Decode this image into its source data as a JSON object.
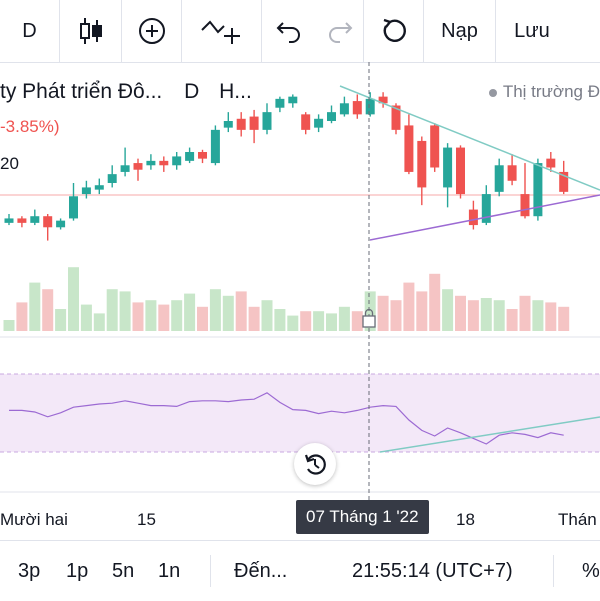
{
  "toolbar": {
    "interval_label": "D",
    "candle_icon": "candles-icon",
    "add_icon": "plus-circle-icon",
    "indicator_icon": "indicator-add-icon",
    "undo_icon": "undo-icon",
    "redo_icon": "redo-icon",
    "refresh_icon": "reload-icon",
    "load_label": "Nạp",
    "save_label": "Lưu"
  },
  "legend": {
    "title": "ty Phát triển Đô...",
    "interval": "D",
    "exchange": "H...",
    "change": "-3.85%)",
    "level": "20",
    "market_status": "Thị trường Đ"
  },
  "x_axis": {
    "labels": [
      "Mười hai",
      "15",
      "18",
      "Thán"
    ],
    "crosshair_label": "07 Tháng 1 '22"
  },
  "bottom": {
    "ranges": [
      "3p",
      "1p",
      "5n",
      "1n"
    ],
    "goto": "Đến...",
    "time": "21:55:14 (UTC+7)",
    "percent": "%"
  },
  "colors": {
    "up": "#26a69a",
    "down": "#ef5350",
    "up_volume": "#c8e6c9",
    "down_volume": "#f5c4c4",
    "rsi_line": "#9c6ad3",
    "rsi_band": "#f3e8f8",
    "trend_upper": "#80cbc4",
    "trend_lower": "#9c6ad3"
  },
  "chart_data": {
    "type": "candlestick",
    "candles": [
      {
        "d": "up",
        "o": 3.0,
        "c": 3.2,
        "h": 3.4,
        "l": 2.9
      },
      {
        "d": "down",
        "o": 3.2,
        "c": 3.0,
        "h": 3.3,
        "l": 2.8
      },
      {
        "d": "up",
        "o": 3.0,
        "c": 3.3,
        "h": 3.6,
        "l": 2.9
      },
      {
        "d": "down",
        "o": 3.3,
        "c": 2.8,
        "h": 3.4,
        "l": 2.2
      },
      {
        "d": "up",
        "o": 2.8,
        "c": 3.1,
        "h": 3.2,
        "l": 2.7
      },
      {
        "d": "up",
        "o": 3.2,
        "c": 4.2,
        "h": 4.8,
        "l": 3.1
      },
      {
        "d": "up",
        "o": 4.3,
        "c": 4.6,
        "h": 4.9,
        "l": 4.1
      },
      {
        "d": "up",
        "o": 4.5,
        "c": 4.7,
        "h": 5.0,
        "l": 4.3
      },
      {
        "d": "up",
        "o": 4.8,
        "c": 5.2,
        "h": 5.6,
        "l": 4.6
      },
      {
        "d": "up",
        "o": 5.3,
        "c": 5.6,
        "h": 6.4,
        "l": 5.1
      },
      {
        "d": "down",
        "o": 5.7,
        "c": 5.4,
        "h": 5.9,
        "l": 4.9
      },
      {
        "d": "up",
        "o": 5.6,
        "c": 5.8,
        "h": 6.1,
        "l": 5.4
      },
      {
        "d": "down",
        "o": 5.8,
        "c": 5.6,
        "h": 6.0,
        "l": 5.3
      },
      {
        "d": "up",
        "o": 5.6,
        "c": 6.0,
        "h": 6.2,
        "l": 5.4
      },
      {
        "d": "up",
        "o": 5.8,
        "c": 6.2,
        "h": 6.4,
        "l": 5.7
      },
      {
        "d": "down",
        "o": 6.2,
        "c": 5.9,
        "h": 6.3,
        "l": 5.7
      },
      {
        "d": "up",
        "o": 5.7,
        "c": 7.2,
        "h": 7.4,
        "l": 5.6
      },
      {
        "d": "up",
        "o": 7.3,
        "c": 7.6,
        "h": 8.0,
        "l": 7.1
      },
      {
        "d": "down",
        "o": 7.7,
        "c": 7.2,
        "h": 8.0,
        "l": 6.9
      },
      {
        "d": "down",
        "o": 7.8,
        "c": 7.2,
        "h": 8.1,
        "l": 6.6
      },
      {
        "d": "up",
        "o": 7.2,
        "c": 8.0,
        "h": 8.4,
        "l": 7.0
      },
      {
        "d": "up",
        "o": 8.2,
        "c": 8.6,
        "h": 8.7,
        "l": 8.0
      },
      {
        "d": "up",
        "o": 8.4,
        "c": 8.7,
        "h": 8.8,
        "l": 8.2
      },
      {
        "d": "down",
        "o": 7.9,
        "c": 7.2,
        "h": 8.0,
        "l": 7.0
      },
      {
        "d": "up",
        "o": 7.3,
        "c": 7.7,
        "h": 7.9,
        "l": 7.1
      },
      {
        "d": "up",
        "o": 7.6,
        "c": 8.0,
        "h": 8.3,
        "l": 7.5
      },
      {
        "d": "up",
        "o": 7.9,
        "c": 8.4,
        "h": 8.7,
        "l": 7.8
      },
      {
        "d": "down",
        "o": 8.5,
        "c": 7.9,
        "h": 8.8,
        "l": 7.7
      },
      {
        "d": "up",
        "o": 7.9,
        "c": 8.6,
        "h": 8.9,
        "l": 7.8
      },
      {
        "d": "down",
        "o": 8.7,
        "c": 8.4,
        "h": 8.9,
        "l": 8.2
      },
      {
        "d": "down",
        "o": 8.3,
        "c": 7.2,
        "h": 8.4,
        "l": 7.0
      },
      {
        "d": "down",
        "o": 7.4,
        "c": 5.3,
        "h": 7.9,
        "l": 5.2
      },
      {
        "d": "down",
        "o": 6.7,
        "c": 4.6,
        "h": 6.9,
        "l": 3.8
      },
      {
        "d": "down",
        "o": 7.4,
        "c": 5.5,
        "h": 7.5,
        "l": 5.3
      },
      {
        "d": "up",
        "o": 4.6,
        "c": 6.4,
        "h": 6.6,
        "l": 3.7
      },
      {
        "d": "down",
        "o": 6.4,
        "c": 4.3,
        "h": 6.5,
        "l": 4.1
      },
      {
        "d": "down",
        "o": 3.6,
        "c": 2.9,
        "h": 4.0,
        "l": 2.7
      },
      {
        "d": "up",
        "o": 3.0,
        "c": 4.3,
        "h": 4.7,
        "l": 2.9
      },
      {
        "d": "up",
        "o": 4.4,
        "c": 5.6,
        "h": 5.9,
        "l": 4.2
      },
      {
        "d": "down",
        "o": 5.6,
        "c": 4.9,
        "h": 6.1,
        "l": 4.7
      },
      {
        "d": "down",
        "o": 4.3,
        "c": 3.3,
        "h": 5.7,
        "l": 3.2
      },
      {
        "d": "up",
        "o": 3.3,
        "c": 5.7,
        "h": 5.9,
        "l": 3.1
      },
      {
        "d": "down",
        "o": 5.9,
        "c": 5.5,
        "h": 6.2,
        "l": 5.3
      },
      {
        "d": "down",
        "o": 5.3,
        "c": 4.4,
        "h": 5.8,
        "l": 4.3
      }
    ],
    "volumes": [
      {
        "d": "up",
        "v": 0.5
      },
      {
        "d": "down",
        "v": 1.3
      },
      {
        "d": "up",
        "v": 2.2
      },
      {
        "d": "down",
        "v": 1.9
      },
      {
        "d": "up",
        "v": 1.0
      },
      {
        "d": "up",
        "v": 2.9
      },
      {
        "d": "up",
        "v": 1.2
      },
      {
        "d": "up",
        "v": 0.8
      },
      {
        "d": "up",
        "v": 1.9
      },
      {
        "d": "up",
        "v": 1.8
      },
      {
        "d": "down",
        "v": 1.3
      },
      {
        "d": "up",
        "v": 1.4
      },
      {
        "d": "down",
        "v": 1.2
      },
      {
        "d": "up",
        "v": 1.4
      },
      {
        "d": "up",
        "v": 1.7
      },
      {
        "d": "down",
        "v": 1.1
      },
      {
        "d": "up",
        "v": 1.9
      },
      {
        "d": "up",
        "v": 1.6
      },
      {
        "d": "down",
        "v": 1.8
      },
      {
        "d": "down",
        "v": 1.1
      },
      {
        "d": "up",
        "v": 1.4
      },
      {
        "d": "up",
        "v": 1.0
      },
      {
        "d": "up",
        "v": 0.7
      },
      {
        "d": "down",
        "v": 0.9
      },
      {
        "d": "up",
        "v": 0.9
      },
      {
        "d": "up",
        "v": 0.8
      },
      {
        "d": "up",
        "v": 1.1
      },
      {
        "d": "down",
        "v": 0.9
      },
      {
        "d": "up",
        "v": 1.8
      },
      {
        "d": "down",
        "v": 1.6
      },
      {
        "d": "down",
        "v": 1.4
      },
      {
        "d": "down",
        "v": 2.2
      },
      {
        "d": "down",
        "v": 1.8
      },
      {
        "d": "down",
        "v": 2.6
      },
      {
        "d": "up",
        "v": 1.9
      },
      {
        "d": "down",
        "v": 1.6
      },
      {
        "d": "down",
        "v": 1.4
      },
      {
        "d": "up",
        "v": 1.5
      },
      {
        "d": "up",
        "v": 1.4
      },
      {
        "d": "down",
        "v": 1.0
      },
      {
        "d": "down",
        "v": 1.6
      },
      {
        "d": "up",
        "v": 1.4
      },
      {
        "d": "down",
        "v": 1.3
      },
      {
        "d": "down",
        "v": 1.1
      }
    ],
    "rsi": [
      52,
      52,
      50,
      44,
      49,
      56,
      58,
      60,
      61,
      64,
      61,
      58,
      58,
      57,
      63,
      64,
      64,
      63,
      65,
      66,
      74,
      62,
      53,
      52,
      48,
      51,
      49,
      52,
      56,
      58,
      57,
      40,
      27,
      20,
      30,
      24,
      17,
      10,
      21,
      24,
      22,
      18,
      24,
      21
    ],
    "grid": false
  }
}
